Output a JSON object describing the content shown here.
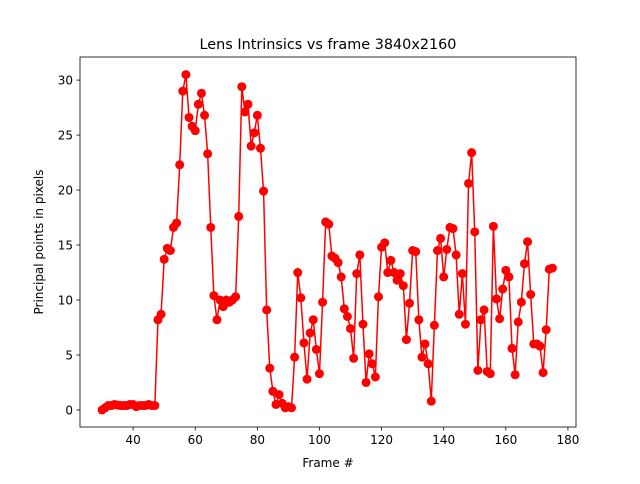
{
  "chart_data": {
    "type": "line",
    "title": "Lens Intrinsics vs frame 3840x2160",
    "xlabel": "Frame #",
    "ylabel": "Principal points in pixels",
    "xlim": [
      22.9,
      182.6
    ],
    "ylim": [
      -1.55,
      32.1
    ],
    "xticks": [
      40,
      60,
      80,
      100,
      120,
      140,
      160,
      180
    ],
    "yticks": [
      0,
      5,
      10,
      15,
      20,
      25,
      30
    ],
    "grid": false,
    "legend": "none",
    "color": "#ff0000",
    "marker": "circle",
    "x_start": 30,
    "values": [
      0.0,
      0.2,
      0.4,
      0.4,
      0.5,
      0.45,
      0.4,
      0.4,
      0.4,
      0.5,
      0.5,
      0.3,
      0.4,
      0.4,
      0.4,
      0.5,
      0.4,
      0.4,
      8.2,
      8.7,
      13.7,
      14.7,
      14.5,
      16.6,
      17.0,
      22.3,
      29.0,
      30.5,
      26.6,
      25.8,
      25.4,
      27.8,
      28.8,
      26.8,
      23.3,
      16.6,
      10.4,
      8.2,
      10.0,
      9.4,
      10.0,
      9.8,
      10.0,
      10.3,
      17.6,
      29.4,
      27.1,
      27.8,
      24.0,
      25.2,
      26.8,
      23.8,
      19.9,
      9.1,
      3.8,
      1.7,
      0.5,
      1.4,
      0.6,
      0.2,
      0.3,
      0.2,
      4.8,
      12.5,
      10.2,
      6.1,
      2.8,
      7.0,
      8.2,
      5.5,
      3.3,
      9.8,
      17.1,
      16.9,
      14.0,
      13.8,
      13.4,
      12.1,
      9.2,
      8.5,
      7.4,
      4.7,
      12.4,
      14.1,
      7.8,
      2.5,
      5.1,
      4.2,
      3.0,
      10.3,
      14.8,
      15.2,
      12.5,
      13.6,
      12.5,
      11.8,
      12.4,
      11.3,
      6.4,
      9.7,
      14.5,
      14.4,
      8.2,
      4.8,
      6.0,
      4.2,
      0.8,
      7.7,
      14.5,
      15.6,
      12.1,
      14.6,
      16.6,
      16.5,
      14.1,
      8.7,
      12.4,
      7.8,
      20.6,
      23.4,
      16.2,
      3.6,
      8.2,
      9.1,
      3.5,
      3.3,
      16.7,
      10.1,
      8.3,
      11.0,
      12.7,
      12.1,
      5.6,
      3.2,
      8.0,
      9.8,
      13.3,
      15.3,
      10.5,
      6.0,
      6.0,
      5.8,
      3.4,
      7.3,
      12.8,
      12.9
    ]
  }
}
